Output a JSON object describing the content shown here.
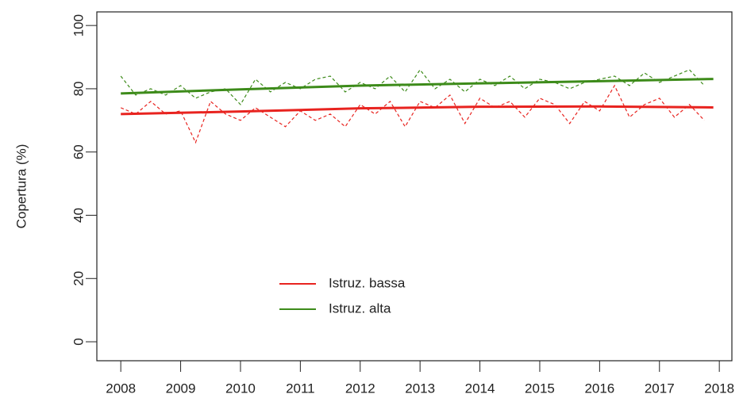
{
  "chart_data": {
    "type": "line",
    "y_label": "Copertura (%)",
    "xlim": [
      2007.6,
      2018.21
    ],
    "ylim": [
      -6,
      104.3
    ],
    "xticks": [
      2008,
      2009,
      2010,
      2011,
      2012,
      2013,
      2014,
      2015,
      2016,
      2017,
      2018
    ],
    "yticks": [
      0,
      20,
      40,
      60,
      80,
      100
    ],
    "legend": "bottom-left",
    "series": [
      {
        "name": "Istruz. bassa",
        "color": "#e8231f",
        "style": "dashed",
        "x": [
          2008,
          2008.25,
          2008.5,
          2008.75,
          2009,
          2009.25,
          2009.5,
          2009.75,
          2010,
          2010.25,
          2010.5,
          2010.75,
          2011,
          2011.25,
          2011.5,
          2011.75,
          2012,
          2012.25,
          2012.5,
          2012.75,
          2013,
          2013.25,
          2013.5,
          2013.75,
          2014,
          2014.25,
          2014.5,
          2014.75,
          2015,
          2015.25,
          2015.5,
          2015.75,
          2016,
          2016.25,
          2016.5,
          2016.75,
          2017,
          2017.25,
          2017.5,
          2017.75
        ],
        "values": [
          74,
          72,
          76,
          72,
          73,
          63,
          76,
          72,
          70,
          74,
          71,
          68,
          73,
          70,
          72,
          68,
          75,
          72,
          76,
          68,
          76,
          74,
          78,
          69,
          77,
          74,
          76,
          71,
          77,
          75,
          69,
          76,
          73,
          81,
          71,
          75,
          77,
          71,
          75,
          70
        ]
      },
      {
        "name": "Istruz. alta",
        "color": "#3d8b1a",
        "style": "dashed",
        "x": [
          2008,
          2008.25,
          2008.5,
          2008.75,
          2009,
          2009.25,
          2009.5,
          2009.75,
          2010,
          2010.25,
          2010.5,
          2010.75,
          2011,
          2011.25,
          2011.5,
          2011.75,
          2012,
          2012.25,
          2012.5,
          2012.75,
          2013,
          2013.25,
          2013.5,
          2013.75,
          2014,
          2014.25,
          2014.5,
          2014.75,
          2015,
          2015.25,
          2015.5,
          2015.75,
          2016,
          2016.25,
          2016.5,
          2016.75,
          2017,
          2017.25,
          2017.5,
          2017.75
        ],
        "values": [
          84,
          78,
          80,
          78,
          81,
          77,
          79,
          80,
          75,
          83,
          79,
          82,
          80,
          83,
          84,
          79,
          82,
          80,
          84,
          79,
          86,
          80,
          83,
          79,
          83,
          81,
          84,
          80,
          83,
          82,
          80,
          82,
          83,
          84,
          81,
          85,
          82,
          84,
          86,
          81
        ]
      },
      {
        "color": "#e8231f",
        "style": "solid",
        "x": [
          2008,
          2010,
          2012,
          2014,
          2016,
          2017.9
        ],
        "values": [
          72,
          72.8,
          73.8,
          74.3,
          74.4,
          74.1
        ]
      },
      {
        "color": "#3d8b1a",
        "style": "solid",
        "x": [
          2008,
          2010,
          2012,
          2014,
          2016,
          2017.9
        ],
        "values": [
          78.5,
          79.8,
          81,
          81.7,
          82.4,
          83.1
        ]
      }
    ]
  }
}
